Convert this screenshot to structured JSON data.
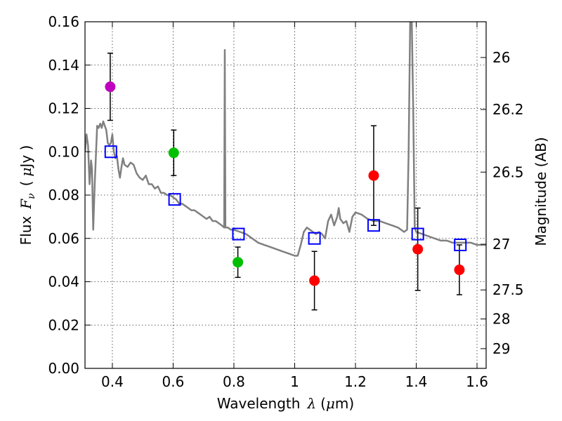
{
  "chart_data": {
    "type": "scatter",
    "xlabel_text": "Wavelength",
    "xlabel_symbol": "λ",
    "xlabel_unit_open": "(",
    "xlabel_unit_mu": "μ",
    "xlabel_unit_rest": "m)",
    "ylabel_text": "Flux",
    "ylabel_symbol": "F",
    "ylabel_sub": "ν",
    "ylabel_unit_open": "(",
    "ylabel_unit_mu": "μ",
    "ylabel_unit_rest": "Jy )",
    "y2label": "Magnitude (AB)",
    "xlim": [
      0.31,
      1.63
    ],
    "ylim": [
      0.0,
      0.16
    ],
    "grid": true,
    "xticks": [
      {
        "value": 0.4,
        "label": "0.4"
      },
      {
        "value": 0.6,
        "label": "0.6"
      },
      {
        "value": 0.8,
        "label": "0.8"
      },
      {
        "value": 1.0,
        "label": "1"
      },
      {
        "value": 1.2,
        "label": "1.2"
      },
      {
        "value": 1.4,
        "label": "1.4"
      },
      {
        "value": 1.6,
        "label": "1.6"
      }
    ],
    "yticks": [
      {
        "value": 0.0,
        "label": "0.00"
      },
      {
        "value": 0.02,
        "label": "0.02"
      },
      {
        "value": 0.04,
        "label": "0.04"
      },
      {
        "value": 0.06,
        "label": "0.06"
      },
      {
        "value": 0.08,
        "label": "0.08"
      },
      {
        "value": 0.1,
        "label": "0.10"
      },
      {
        "value": 0.12,
        "label": "0.12"
      },
      {
        "value": 0.14,
        "label": "0.14"
      },
      {
        "value": 0.16,
        "label": "0.16"
      }
    ],
    "y2ticks": [
      {
        "flux": 0.1435,
        "label": "26"
      },
      {
        "flux": 0.1195,
        "label": "26.2"
      },
      {
        "flux": 0.0906,
        "label": "26.5"
      },
      {
        "flux": 0.0573,
        "label": "27"
      },
      {
        "flux": 0.0362,
        "label": "27.5"
      },
      {
        "flux": 0.0228,
        "label": "28"
      },
      {
        "flux": 0.0091,
        "label": "29"
      }
    ],
    "series": [
      {
        "type": "line",
        "color": "#808080",
        "points": [
          [
            0.31,
            0.1
          ],
          [
            0.315,
            0.108
          ],
          [
            0.32,
            0.103
          ],
          [
            0.325,
            0.085
          ],
          [
            0.33,
            0.096
          ],
          [
            0.333,
            0.092
          ],
          [
            0.337,
            0.064
          ],
          [
            0.342,
            0.085
          ],
          [
            0.35,
            0.112
          ],
          [
            0.355,
            0.111
          ],
          [
            0.36,
            0.113
          ],
          [
            0.365,
            0.111
          ],
          [
            0.37,
            0.114
          ],
          [
            0.375,
            0.112
          ],
          [
            0.38,
            0.11
          ],
          [
            0.385,
            0.104
          ],
          [
            0.39,
            0.103
          ],
          [
            0.395,
            0.104
          ],
          [
            0.4,
            0.108
          ],
          [
            0.405,
            0.1
          ],
          [
            0.41,
            0.097
          ],
          [
            0.415,
            0.098
          ],
          [
            0.42,
            0.092
          ],
          [
            0.425,
            0.088
          ],
          [
            0.43,
            0.093
          ],
          [
            0.435,
            0.097
          ],
          [
            0.44,
            0.094
          ],
          [
            0.45,
            0.093
          ],
          [
            0.46,
            0.095
          ],
          [
            0.47,
            0.094
          ],
          [
            0.48,
            0.09
          ],
          [
            0.49,
            0.088
          ],
          [
            0.5,
            0.087
          ],
          [
            0.51,
            0.089
          ],
          [
            0.52,
            0.085
          ],
          [
            0.53,
            0.085
          ],
          [
            0.54,
            0.083
          ],
          [
            0.55,
            0.084
          ],
          [
            0.56,
            0.081
          ],
          [
            0.57,
            0.081
          ],
          [
            0.58,
            0.08
          ],
          [
            0.59,
            0.08
          ],
          [
            0.6,
            0.079
          ],
          [
            0.61,
            0.078
          ],
          [
            0.62,
            0.076
          ],
          [
            0.63,
            0.076
          ],
          [
            0.64,
            0.075
          ],
          [
            0.65,
            0.074
          ],
          [
            0.66,
            0.073
          ],
          [
            0.67,
            0.073
          ],
          [
            0.68,
            0.072
          ],
          [
            0.69,
            0.071
          ],
          [
            0.7,
            0.07
          ],
          [
            0.71,
            0.069
          ],
          [
            0.72,
            0.07
          ],
          [
            0.73,
            0.068
          ],
          [
            0.74,
            0.068
          ],
          [
            0.75,
            0.067
          ],
          [
            0.76,
            0.066
          ],
          [
            0.768,
            0.065
          ],
          [
            0.77,
            0.147
          ],
          [
            0.772,
            0.065
          ],
          [
            0.78,
            0.065
          ],
          [
            0.79,
            0.064
          ],
          [
            0.8,
            0.064
          ],
          [
            0.82,
            0.063
          ],
          [
            0.84,
            0.062
          ],
          [
            0.86,
            0.06
          ],
          [
            0.88,
            0.058
          ],
          [
            0.9,
            0.057
          ],
          [
            0.92,
            0.056
          ],
          [
            0.94,
            0.055
          ],
          [
            0.96,
            0.054
          ],
          [
            0.98,
            0.053
          ],
          [
            1.0,
            0.052
          ],
          [
            1.01,
            0.052
          ],
          [
            1.02,
            0.057
          ],
          [
            1.03,
            0.063
          ],
          [
            1.04,
            0.065
          ],
          [
            1.05,
            0.064
          ],
          [
            1.06,
            0.063
          ],
          [
            1.07,
            0.062
          ],
          [
            1.08,
            0.063
          ],
          [
            1.09,
            0.062
          ],
          [
            1.1,
            0.06
          ],
          [
            1.11,
            0.068
          ],
          [
            1.12,
            0.071
          ],
          [
            1.13,
            0.066
          ],
          [
            1.14,
            0.07
          ],
          [
            1.145,
            0.074
          ],
          [
            1.15,
            0.069
          ],
          [
            1.16,
            0.067
          ],
          [
            1.17,
            0.068
          ],
          [
            1.18,
            0.063
          ],
          [
            1.19,
            0.07
          ],
          [
            1.2,
            0.072
          ],
          [
            1.22,
            0.071
          ],
          [
            1.24,
            0.069
          ],
          [
            1.26,
            0.068
          ],
          [
            1.28,
            0.068
          ],
          [
            1.3,
            0.067
          ],
          [
            1.32,
            0.066
          ],
          [
            1.34,
            0.065
          ],
          [
            1.35,
            0.064
          ],
          [
            1.36,
            0.063
          ],
          [
            1.37,
            0.064
          ],
          [
            1.375,
            0.1
          ],
          [
            1.38,
            0.16
          ],
          [
            1.385,
            0.163
          ],
          [
            1.39,
            0.12
          ],
          [
            1.395,
            0.065
          ],
          [
            1.4,
            0.063
          ],
          [
            1.42,
            0.062
          ],
          [
            1.44,
            0.061
          ],
          [
            1.46,
            0.06
          ],
          [
            1.48,
            0.059
          ],
          [
            1.5,
            0.059
          ],
          [
            1.52,
            0.058
          ],
          [
            1.54,
            0.058
          ],
          [
            1.56,
            0.058
          ],
          [
            1.58,
            0.058
          ],
          [
            1.6,
            0.057
          ],
          [
            1.63,
            0.057
          ]
        ]
      },
      {
        "type": "open-square",
        "color": "#0000ff",
        "points": [
          [
            0.395,
            0.1
          ],
          [
            0.605,
            0.078
          ],
          [
            0.815,
            0.062
          ],
          [
            1.065,
            0.06
          ],
          [
            1.26,
            0.066
          ],
          [
            1.405,
            0.062
          ],
          [
            1.545,
            0.057
          ]
        ]
      },
      {
        "type": "filled-circle-errorbar",
        "points": [
          {
            "x": 0.393,
            "y": 0.13,
            "err": 0.0155,
            "color": "#bf00bf"
          },
          {
            "x": 0.602,
            "y": 0.0995,
            "err": 0.0105,
            "color": "#00bf00"
          },
          {
            "x": 0.813,
            "y": 0.049,
            "err": 0.007,
            "color": "#00bf00"
          },
          {
            "x": 1.065,
            "y": 0.0405,
            "err": 0.0135,
            "color": "#ff0000"
          },
          {
            "x": 1.26,
            "y": 0.089,
            "err": 0.023,
            "color": "#ff0000"
          },
          {
            "x": 1.405,
            "y": 0.055,
            "err": 0.019,
            "color": "#ff0000"
          },
          {
            "x": 1.542,
            "y": 0.0455,
            "err": 0.0115,
            "color": "#ff0000"
          }
        ]
      }
    ]
  }
}
